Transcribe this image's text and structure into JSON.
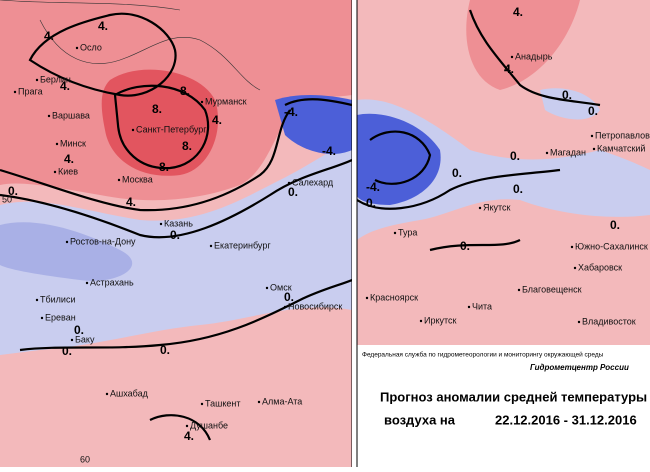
{
  "left_map": {
    "cities": [
      "Осло",
      "Берлин",
      "Прага",
      "Варшава",
      "Минск",
      "Киев",
      "Москва",
      "Санкт-Петербург",
      "Мурманск",
      "Салехард",
      "Казань",
      "Ростов-на-Дону",
      "Екатеринбург",
      "Астрахань",
      "Тбилиси",
      "Ереван",
      "Баку",
      "Омск",
      "Новосибирск",
      "Ашхабад",
      "Ташкент",
      "Алма-Ата",
      "Душанбе"
    ],
    "contour_labels": [
      "4.",
      "4.",
      "4.",
      "4.",
      "4.",
      "8.",
      "8.",
      "8.",
      "8.",
      "4.",
      "-4.",
      "-4.",
      "0.",
      "0.",
      "0.",
      "0.",
      "0.",
      "0.",
      "0.",
      "4."
    ],
    "grid_labels": [
      "50",
      "60"
    ]
  },
  "right_map": {
    "cities": [
      "Анадырь",
      "Петропавловск",
      "Камчатский",
      "Магадан",
      "Якутск",
      "Тура",
      "Южно-Сахалинск",
      "Хабаровск",
      "Благовещенск",
      "Красноярск",
      "Чита",
      "Иркутск",
      "Владивосток"
    ],
    "contour_labels": [
      "4.",
      "4.",
      "0.",
      "0.",
      "-4.",
      "0.",
      "0.",
      "0.",
      "0.",
      "0.",
      "0."
    ]
  },
  "credits": {
    "agency": "Федеральная служба по гидрометеорологии и мониторингу окружающей среды",
    "center": "Гидрометцентр России"
  },
  "title": {
    "line1": "Прогноз аномалии средней температуры",
    "line2": "воздуха на",
    "period": "22.12.2016 - 31.12.2016"
  }
}
